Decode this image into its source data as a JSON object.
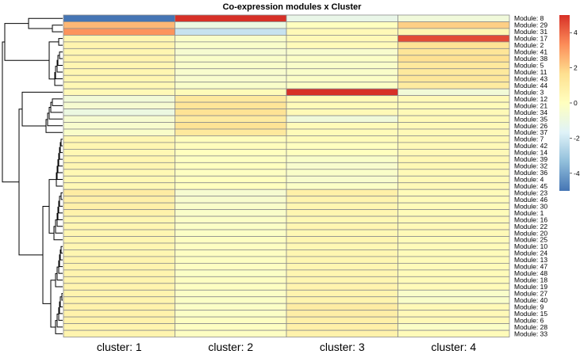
{
  "chart_data": {
    "type": "heatmap",
    "title": "Co-expression modules x Cluster",
    "columns": [
      "cluster:  1",
      "cluster:  2",
      "cluster:  3",
      "cluster:  4"
    ],
    "rows": [
      "Module:  8",
      "Module:  29",
      "Module:  31",
      "Module:  17",
      "Module:  2",
      "Module:  41",
      "Module:  38",
      "Module:  5",
      "Module:  11",
      "Module:  43",
      "Module:  44",
      "Module:  3",
      "Module:  12",
      "Module:  21",
      "Module:  34",
      "Module:  35",
      "Module:  26",
      "Module:  37",
      "Module:  7",
      "Module:  42",
      "Module:  14",
      "Module:  39",
      "Module:  32",
      "Module:  36",
      "Module:  4",
      "Module:  45",
      "Module:  23",
      "Module:  46",
      "Module:  30",
      "Module:  1",
      "Module:  16",
      "Module:  22",
      "Module:  20",
      "Module:  25",
      "Module:  10",
      "Module:  24",
      "Module:  13",
      "Module:  47",
      "Module:  48",
      "Module:  18",
      "Module:  19",
      "Module:  27",
      "Module:  40",
      "Module:  9",
      "Module:  15",
      "Module:  6",
      "Module:  28",
      "Module:  33"
    ],
    "values": [
      [
        -5.0,
        5.0,
        -1.2,
        -0.8
      ],
      [
        2.5,
        -1.0,
        0.0,
        2.0
      ],
      [
        3.2,
        -2.2,
        0.3,
        0.5
      ],
      [
        0.5,
        -0.3,
        0.3,
        4.5
      ],
      [
        0.6,
        -0.3,
        0.2,
        1.5
      ],
      [
        0.5,
        -0.5,
        -0.4,
        1.4
      ],
      [
        0.6,
        -0.3,
        -0.2,
        1.6
      ],
      [
        0.5,
        -0.3,
        -0.3,
        1.2
      ],
      [
        0.5,
        -0.4,
        -0.3,
        1.2
      ],
      [
        0.5,
        -0.4,
        -0.2,
        1.3
      ],
      [
        0.4,
        -0.3,
        -0.2,
        1.1
      ],
      [
        0.3,
        0.2,
        5.0,
        -0.7
      ],
      [
        -0.7,
        1.2,
        0.3,
        0.3
      ],
      [
        -0.5,
        1.4,
        0.2,
        0.2
      ],
      [
        -1.0,
        1.5,
        0.3,
        0.3
      ],
      [
        -0.5,
        1.1,
        -0.8,
        0.3
      ],
      [
        -0.4,
        1.5,
        0.2,
        0.3
      ],
      [
        -0.3,
        1.2,
        0.2,
        0.3
      ],
      [
        0.5,
        0.1,
        0.2,
        0.4
      ],
      [
        0.5,
        0.1,
        0.0,
        0.3
      ],
      [
        0.4,
        0.0,
        0.0,
        0.3
      ],
      [
        0.5,
        -0.1,
        -0.3,
        0.4
      ],
      [
        0.5,
        0.0,
        -0.4,
        0.4
      ],
      [
        0.4,
        -0.1,
        -0.3,
        0.3
      ],
      [
        0.4,
        0.0,
        -0.4,
        0.3
      ],
      [
        0.4,
        0.0,
        -0.2,
        0.3
      ],
      [
        1.0,
        -0.5,
        0.8,
        0.2
      ],
      [
        0.8,
        -0.4,
        0.6,
        0.2
      ],
      [
        0.8,
        -0.3,
        0.5,
        0.2
      ],
      [
        0.7,
        -0.3,
        0.5,
        0.2
      ],
      [
        0.5,
        -0.2,
        0.4,
        0.3
      ],
      [
        0.5,
        -0.2,
        0.5,
        0.3
      ],
      [
        0.5,
        -0.2,
        0.4,
        0.3
      ],
      [
        0.5,
        -0.1,
        0.5,
        0.2
      ],
      [
        0.5,
        -0.1,
        0.4,
        0.2
      ],
      [
        0.5,
        -0.1,
        0.5,
        0.2
      ],
      [
        0.6,
        -0.1,
        0.5,
        0.2
      ],
      [
        0.6,
        -0.1,
        0.5,
        0.2
      ],
      [
        0.6,
        -0.2,
        0.5,
        0.2
      ],
      [
        0.6,
        -0.1,
        0.5,
        0.2
      ],
      [
        0.6,
        -0.1,
        0.6,
        0.2
      ],
      [
        0.6,
        -0.2,
        0.6,
        -0.3
      ],
      [
        0.6,
        -0.2,
        0.6,
        -0.3
      ],
      [
        0.7,
        -0.2,
        1.0,
        0.3
      ],
      [
        0.7,
        -0.2,
        0.9,
        0.3
      ],
      [
        0.7,
        -0.1,
        0.8,
        0.3
      ],
      [
        0.6,
        -0.1,
        0.8,
        -0.2
      ],
      [
        0.6,
        -0.1,
        0.7,
        0.2
      ]
    ],
    "color_scale": {
      "min": -5,
      "max": 5,
      "colors": [
        "#4575b4",
        "#91bfdb",
        "#e0f3f8",
        "#ffffbf",
        "#fee090",
        "#fc8d59",
        "#d73027"
      ],
      "ticks": [
        4,
        2,
        0,
        -2,
        -4
      ]
    },
    "legend_position": "right",
    "row_dendrogram": true
  }
}
